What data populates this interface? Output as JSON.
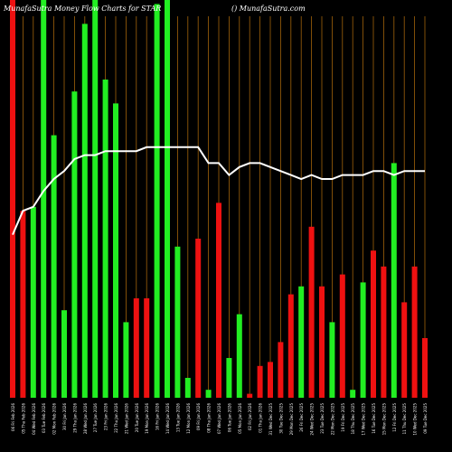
{
  "header": {
    "title_left": "MunafaSutra  Money Flow  Charts for STAR",
    "title_right": "() MunafaSutra.com"
  },
  "colors": {
    "background": "#000000",
    "up": "#22ee22",
    "down": "#ee1111",
    "line": "#ffffff",
    "grid": "#a0620a",
    "text": "#ffffff"
  },
  "chart_data": {
    "type": "bar",
    "grid": true,
    "overlay": "line",
    "bars": [
      {
        "label": "06 Fri Feb 2026",
        "value": 100,
        "color": "down"
      },
      {
        "label": "05 Thu Feb 2026",
        "value": 47,
        "color": "down"
      },
      {
        "label": "04 Wed Feb 2026",
        "value": 48,
        "color": "up"
      },
      {
        "label": "03 Tue Feb 2026",
        "value": 100,
        "color": "up"
      },
      {
        "label": "02 Mon Feb 2026",
        "value": 66,
        "color": "up"
      },
      {
        "label": "30 Fri Jan 2026",
        "value": 22,
        "color": "up"
      },
      {
        "label": "29 Thu Jan 2026",
        "value": 77,
        "color": "up"
      },
      {
        "label": "28 Wed Jan 2026",
        "value": 94,
        "color": "up"
      },
      {
        "label": "27 Tue Jan 2026",
        "value": 100,
        "color": "up"
      },
      {
        "label": "23 Fri Jan 2026",
        "value": 80,
        "color": "up"
      },
      {
        "label": "22 Thu Jan 2026",
        "value": 74,
        "color": "up"
      },
      {
        "label": "21 Wed Jan 2026",
        "value": 19,
        "color": "up"
      },
      {
        "label": "20 Tue Jan 2026",
        "value": 25,
        "color": "down"
      },
      {
        "label": "19 Mon Jan 2026",
        "value": 25,
        "color": "down"
      },
      {
        "label": "16 Fri Jan 2026",
        "value": 99,
        "color": "up"
      },
      {
        "label": "14 Wed Jan 2026",
        "value": 100,
        "color": "up"
      },
      {
        "label": "13 Tue Jan 2026",
        "value": 38,
        "color": "up"
      },
      {
        "label": "12 Mon Jan 2026",
        "value": 5,
        "color": "up"
      },
      {
        "label": "09 Fri Jan 2026",
        "value": 40,
        "color": "down"
      },
      {
        "label": "08 Thu Jan 2026",
        "value": 2,
        "color": "up"
      },
      {
        "label": "07 Wed Jan 2026",
        "value": 49,
        "color": "down"
      },
      {
        "label": "06 Tue Jan 2026",
        "value": 10,
        "color": "up"
      },
      {
        "label": "05 Mon Jan 2026",
        "value": 21,
        "color": "up"
      },
      {
        "label": "02 Fri Jan 2026",
        "value": 1,
        "color": "down"
      },
      {
        "label": "01 Thu Jan 2026",
        "value": 8,
        "color": "down"
      },
      {
        "label": "31 Wed Dec 2025",
        "value": 9,
        "color": "down"
      },
      {
        "label": "30 Tue Dec 2025",
        "value": 14,
        "color": "down"
      },
      {
        "label": "29 Mon Dec 2025",
        "value": 26,
        "color": "down"
      },
      {
        "label": "26 Fri Dec 2025",
        "value": 28,
        "color": "up"
      },
      {
        "label": "24 Wed Dec 2025",
        "value": 43,
        "color": "down"
      },
      {
        "label": "23 Tue Dec 2025",
        "value": 28,
        "color": "down"
      },
      {
        "label": "22 Mon Dec 2025",
        "value": 19,
        "color": "up"
      },
      {
        "label": "19 Fri Dec 2025",
        "value": 31,
        "color": "down"
      },
      {
        "label": "18 Thu Dec 2025",
        "value": 2,
        "color": "up"
      },
      {
        "label": "17 Wed Dec 2025",
        "value": 29,
        "color": "up"
      },
      {
        "label": "16 Tue Dec 2025",
        "value": 37,
        "color": "down"
      },
      {
        "label": "15 Mon Dec 2025",
        "value": 33,
        "color": "down"
      },
      {
        "label": "12 Fri Dec 2025",
        "value": 59,
        "color": "up"
      },
      {
        "label": "11 Thu Dec 2025",
        "value": 24,
        "color": "down"
      },
      {
        "label": "10 Wed Dec 2025",
        "value": 33,
        "color": "down"
      },
      {
        "label": "09 Tue Dec 2025",
        "value": 15,
        "color": "down"
      }
    ],
    "line": [
      41,
      47,
      48,
      52,
      55,
      57,
      60,
      61,
      61,
      62,
      62,
      62,
      62,
      63,
      63,
      63,
      63,
      63,
      63,
      59,
      59,
      56,
      58,
      59,
      59,
      58,
      57,
      56,
      55,
      56,
      55,
      55,
      56,
      56,
      56,
      57,
      57,
      56,
      57,
      57,
      57
    ],
    "ylim": [
      0,
      100
    ]
  }
}
